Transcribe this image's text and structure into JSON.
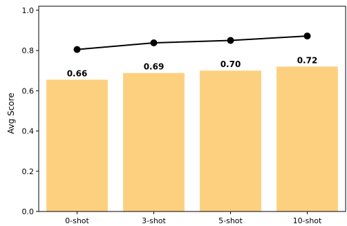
{
  "chart_data": {
    "type": "bar",
    "categories": [
      "0-shot",
      "3-shot",
      "5-shot",
      "10-shot"
    ],
    "series": [
      {
        "values": [
          0.655,
          0.688,
          0.7,
          0.72
        ],
        "labels": [
          "0.66",
          "0.69",
          "0.70",
          "0.72"
        ],
        "color": "#fdd07f"
      },
      {
        "type": "line",
        "values": [
          0.805,
          0.838,
          0.85,
          0.872
        ],
        "color": "#000000"
      }
    ],
    "ylabel": "Avg Score",
    "xlabel": "",
    "ylim": [
      0,
      1.02
    ],
    "yticks": [
      0.0,
      0.2,
      0.4,
      0.6,
      0.8,
      1.0
    ],
    "ytick_labels": [
      "0.0",
      "0.2",
      "0.4",
      "0.6",
      "0.8",
      "1.0"
    ],
    "grid": false
  }
}
